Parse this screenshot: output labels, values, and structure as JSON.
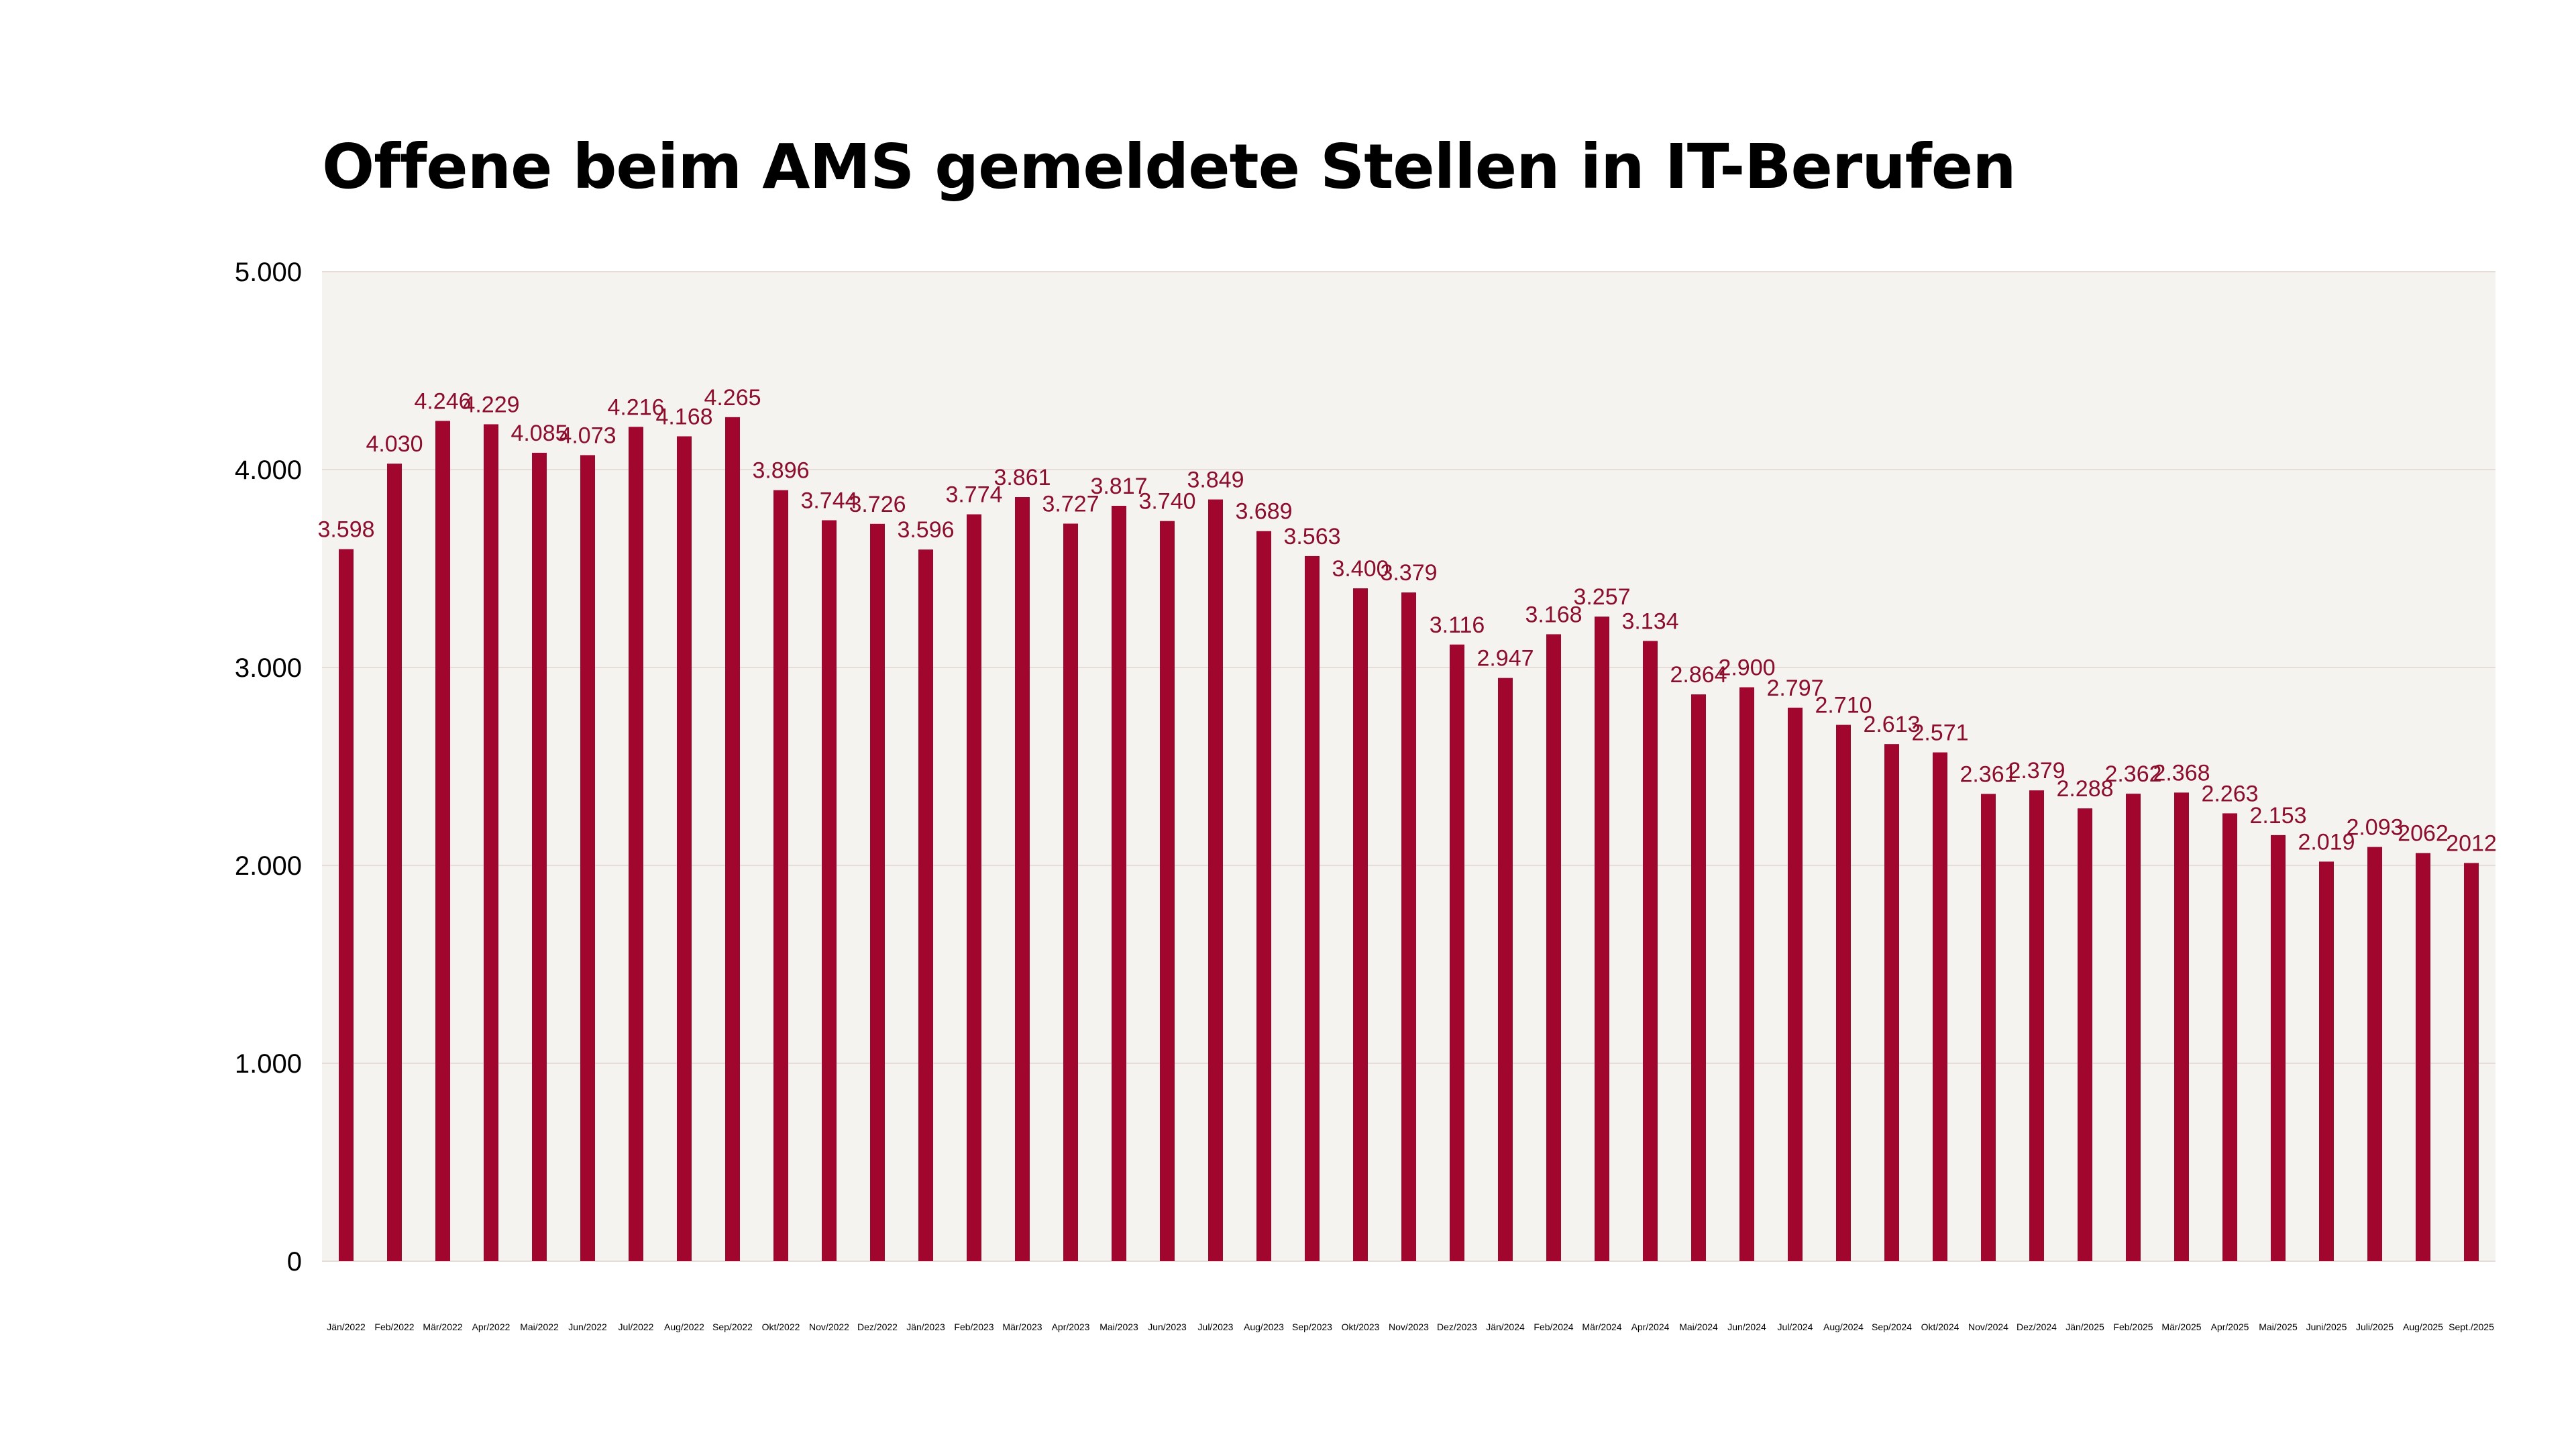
{
  "chart_data": {
    "type": "bar",
    "title": "Offene beim AMS gemeldete Stellen in IT-Berufen",
    "xlabel": "",
    "ylabel": "",
    "ylim": [
      0,
      5000
    ],
    "yticks": [
      0,
      1000,
      2000,
      3000,
      4000,
      5000
    ],
    "ytick_labels": [
      "0",
      "1.000",
      "2.000",
      "3.000",
      "4.000",
      "5.000"
    ],
    "grid": true,
    "legend": "none",
    "colors": {
      "bar": "#a1072e",
      "label": "#8c0d2c",
      "plot_bg": "#f5f3f0",
      "grid": "#e6dcd8"
    },
    "categories": [
      "Jän/2022",
      "Feb/2022",
      "Mär/2022",
      "Apr/2022",
      "Mai/2022",
      "Jun/2022",
      "Jul/2022",
      "Aug/2022",
      "Sep/2022",
      "Okt/2022",
      "Nov/2022",
      "Dez/2022",
      "Jän/2023",
      "Feb/2023",
      "Mär/2023",
      "Apr/2023",
      "Mai/2023",
      "Jun/2023",
      "Jul/2023",
      "Aug/2023",
      "Sep/2023",
      "Okt/2023",
      "Nov/2023",
      "Dez/2023",
      "Jän/2024",
      "Feb/2024",
      "Mär/2024",
      "Apr/2024",
      "Mai/2024",
      "Jun/2024",
      "Jul/2024",
      "Aug/2024",
      "Sep/2024",
      "Okt/2024",
      "Nov/2024",
      "Dez/2024",
      "Jän/2025",
      "Feb/2025",
      "Mär/2025",
      "Apr/2025",
      "Mai/2025",
      "Juni/2025",
      "Juli/2025",
      "Aug/2025",
      "Sept./2025"
    ],
    "values": [
      3598,
      4030,
      4246,
      4229,
      4085,
      4073,
      4216,
      4168,
      4265,
      3896,
      3744,
      3726,
      3596,
      3774,
      3861,
      3727,
      3817,
      3740,
      3849,
      3689,
      3563,
      3400,
      3379,
      3116,
      2947,
      3168,
      3257,
      3134,
      2864,
      2900,
      2797,
      2710,
      2613,
      2571,
      2361,
      2379,
      2288,
      2362,
      2368,
      2263,
      2153,
      2019,
      2093,
      2062,
      2012
    ],
    "data_labels": [
      "3.598",
      "4.030",
      "4.246",
      "4.229",
      "4.085",
      "4.073",
      "4.216",
      "4.168",
      "4.265",
      "3.896",
      "3.744",
      "3.726",
      "3.596",
      "3.774",
      "3.861",
      "3.727",
      "3.817",
      "3.740",
      "3.849",
      "3.689",
      "3.563",
      "3.400",
      "3.379",
      "3.116",
      "2.947",
      "3.168",
      "3.257",
      "3.134",
      "2.864",
      "2.900",
      "2.797",
      "2.710",
      "2.613",
      "2.571",
      "2.361",
      "2.379",
      "2.288",
      "2.362",
      "2.368",
      "2.263",
      "2.153",
      "2.019",
      "2.093",
      "2062",
      "2012"
    ]
  }
}
